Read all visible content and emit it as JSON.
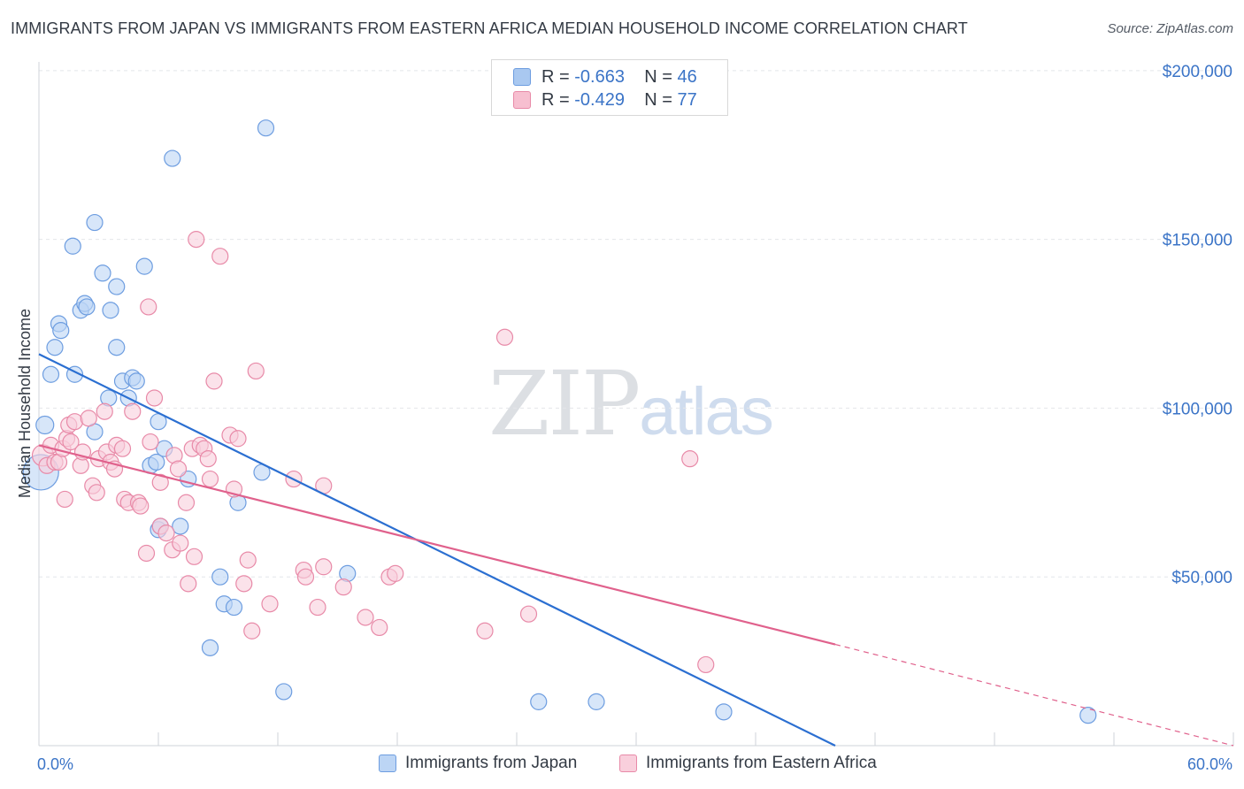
{
  "title": "IMMIGRANTS FROM JAPAN VS IMMIGRANTS FROM EASTERN AFRICA MEDIAN HOUSEHOLD INCOME CORRELATION CHART",
  "source": "Source: ZipAtlas.com",
  "watermark": {
    "zip": "ZIP",
    "atlas": "atlas"
  },
  "stats": [
    {
      "r_label": "R =",
      "r_value": "-0.663",
      "n_label": "N =",
      "n_value": "46",
      "color": "#a9c8f0",
      "border": "#6d9de0"
    },
    {
      "r_label": "R =",
      "r_value": "-0.429",
      "n_label": "N =",
      "n_value": "77",
      "color": "#f7bfd0",
      "border": "#e88aa8"
    }
  ],
  "legend": [
    {
      "label": "Immigrants from Japan",
      "color": "#bcd5f5",
      "border": "#6d9de0"
    },
    {
      "label": "Immigrants from Eastern Africa",
      "color": "#f9cfdc",
      "border": "#e88aa8"
    }
  ],
  "chart_data": {
    "type": "scatter",
    "title": "IMMIGRANTS FROM JAPAN VS IMMIGRANTS FROM EASTERN AFRICA MEDIAN HOUSEHOLD INCOME CORRELATION CHART",
    "xlabel": "",
    "ylabel": "Median Household Income",
    "xlim": [
      0,
      60
    ],
    "ylim": [
      0,
      205000
    ],
    "x_tick_labels": [
      {
        "value": 0,
        "label": "0.0%"
      },
      {
        "value": 60,
        "label": "60.0%"
      }
    ],
    "y_ticks": [
      {
        "value": 50000,
        "label": "$50,000"
      },
      {
        "value": 100000,
        "label": "$100,000"
      },
      {
        "value": 150000,
        "label": "$150,000"
      },
      {
        "value": 200000,
        "label": "$200,000"
      }
    ],
    "grid": true,
    "series": [
      {
        "name": "Immigrants from Japan",
        "color": "#6d9de0",
        "fill": "#bcd5f5",
        "line_color": "#2b6fd1",
        "trend": {
          "x0": 0,
          "y0": 116000,
          "x1": 40,
          "y1": 0
        },
        "points": [
          [
            0.1,
            81000,
            20
          ],
          [
            0.3,
            95000,
            10
          ],
          [
            0.6,
            110000,
            9
          ],
          [
            0.8,
            118000,
            9
          ],
          [
            1.0,
            125000,
            9
          ],
          [
            1.1,
            123000,
            9
          ],
          [
            1.7,
            148000,
            9
          ],
          [
            1.8,
            110000,
            9
          ],
          [
            2.1,
            129000,
            9
          ],
          [
            2.3,
            131000,
            9
          ],
          [
            2.4,
            130000,
            9
          ],
          [
            2.8,
            93000,
            9
          ],
          [
            2.8,
            155000,
            9
          ],
          [
            3.2,
            140000,
            9
          ],
          [
            3.5,
            103000,
            9
          ],
          [
            3.6,
            129000,
            9
          ],
          [
            3.9,
            136000,
            9
          ],
          [
            3.9,
            118000,
            9
          ],
          [
            4.2,
            108000,
            9
          ],
          [
            4.5,
            103000,
            9
          ],
          [
            4.7,
            109000,
            9
          ],
          [
            4.9,
            108000,
            9
          ],
          [
            5.3,
            142000,
            9
          ],
          [
            5.6,
            83000,
            9
          ],
          [
            5.9,
            84000,
            9
          ],
          [
            6.0,
            96000,
            9
          ],
          [
            6.0,
            64000,
            9
          ],
          [
            6.1,
            65000,
            9
          ],
          [
            6.3,
            88000,
            9
          ],
          [
            6.7,
            174000,
            9
          ],
          [
            7.1,
            65000,
            9
          ],
          [
            7.5,
            79000,
            9
          ],
          [
            8.6,
            29000,
            9
          ],
          [
            9.1,
            50000,
            9
          ],
          [
            9.3,
            42000,
            9
          ],
          [
            9.8,
            41000,
            9
          ],
          [
            10.0,
            72000,
            9
          ],
          [
            11.2,
            81000,
            9
          ],
          [
            11.4,
            183000,
            9
          ],
          [
            12.3,
            16000,
            9
          ],
          [
            15.5,
            51000,
            9
          ],
          [
            25.1,
            13000,
            9
          ],
          [
            28.0,
            13000,
            9
          ],
          [
            34.4,
            10000,
            9
          ],
          [
            52.7,
            9000,
            9
          ]
        ]
      },
      {
        "name": "Immigrants from Eastern Africa",
        "color": "#e88aa8",
        "fill": "#f9cfdc",
        "line_color": "#e0618c",
        "trend": {
          "x0": 0,
          "y0": 89000,
          "x1": 40,
          "y1": 30000
        },
        "trend_dashed": {
          "x0": 40,
          "y0": 30000,
          "x1": 60,
          "y1": 0
        },
        "points": [
          [
            0.2,
            86000,
            12
          ],
          [
            0.4,
            83000,
            9
          ],
          [
            0.6,
            89000,
            9
          ],
          [
            0.8,
            84000,
            9
          ],
          [
            1.0,
            84000,
            9
          ],
          [
            1.2,
            88000,
            9
          ],
          [
            1.3,
            73000,
            9
          ],
          [
            1.4,
            91000,
            9
          ],
          [
            1.5,
            95000,
            9
          ],
          [
            1.6,
            90000,
            9
          ],
          [
            1.8,
            96000,
            9
          ],
          [
            2.1,
            83000,
            9
          ],
          [
            2.2,
            87000,
            9
          ],
          [
            2.5,
            97000,
            9
          ],
          [
            2.7,
            77000,
            9
          ],
          [
            2.9,
            75000,
            9
          ],
          [
            3.0,
            85000,
            9
          ],
          [
            3.3,
            99000,
            9
          ],
          [
            3.4,
            87000,
            9
          ],
          [
            3.6,
            84000,
            9
          ],
          [
            3.8,
            82000,
            9
          ],
          [
            3.9,
            89000,
            9
          ],
          [
            4.2,
            88000,
            9
          ],
          [
            4.3,
            73000,
            9
          ],
          [
            4.5,
            72000,
            9
          ],
          [
            4.7,
            99000,
            9
          ],
          [
            5.0,
            72000,
            9
          ],
          [
            5.1,
            71000,
            9
          ],
          [
            5.4,
            57000,
            9
          ],
          [
            5.5,
            130000,
            9
          ],
          [
            5.6,
            90000,
            9
          ],
          [
            5.8,
            103000,
            9
          ],
          [
            6.1,
            65000,
            9
          ],
          [
            6.1,
            78000,
            9
          ],
          [
            6.4,
            63000,
            9
          ],
          [
            6.7,
            58000,
            9
          ],
          [
            6.8,
            86000,
            9
          ],
          [
            7.0,
            82000,
            9
          ],
          [
            7.1,
            60000,
            9
          ],
          [
            7.4,
            72000,
            9
          ],
          [
            7.5,
            48000,
            9
          ],
          [
            7.7,
            88000,
            9
          ],
          [
            7.8,
            56000,
            9
          ],
          [
            7.9,
            150000,
            9
          ],
          [
            8.1,
            89000,
            9
          ],
          [
            8.3,
            88000,
            9
          ],
          [
            8.5,
            85000,
            9
          ],
          [
            8.6,
            79000,
            9
          ],
          [
            8.8,
            108000,
            9
          ],
          [
            9.1,
            145000,
            9
          ],
          [
            9.6,
            92000,
            9
          ],
          [
            9.8,
            76000,
            9
          ],
          [
            10.0,
            91000,
            9
          ],
          [
            10.3,
            48000,
            9
          ],
          [
            10.5,
            55000,
            9
          ],
          [
            10.7,
            34000,
            9
          ],
          [
            10.9,
            111000,
            9
          ],
          [
            11.6,
            42000,
            9
          ],
          [
            12.8,
            79000,
            9
          ],
          [
            13.3,
            52000,
            9
          ],
          [
            13.4,
            50000,
            9
          ],
          [
            14.0,
            41000,
            9
          ],
          [
            14.3,
            77000,
            9
          ],
          [
            14.3,
            53000,
            9
          ],
          [
            15.3,
            47000,
            9
          ],
          [
            16.4,
            38000,
            9
          ],
          [
            17.1,
            35000,
            9
          ],
          [
            17.6,
            50000,
            9
          ],
          [
            17.9,
            51000,
            9
          ],
          [
            22.4,
            34000,
            9
          ],
          [
            23.4,
            121000,
            9
          ],
          [
            24.6,
            39000,
            9
          ],
          [
            32.7,
            85000,
            9
          ],
          [
            33.5,
            24000,
            9
          ]
        ]
      }
    ]
  }
}
